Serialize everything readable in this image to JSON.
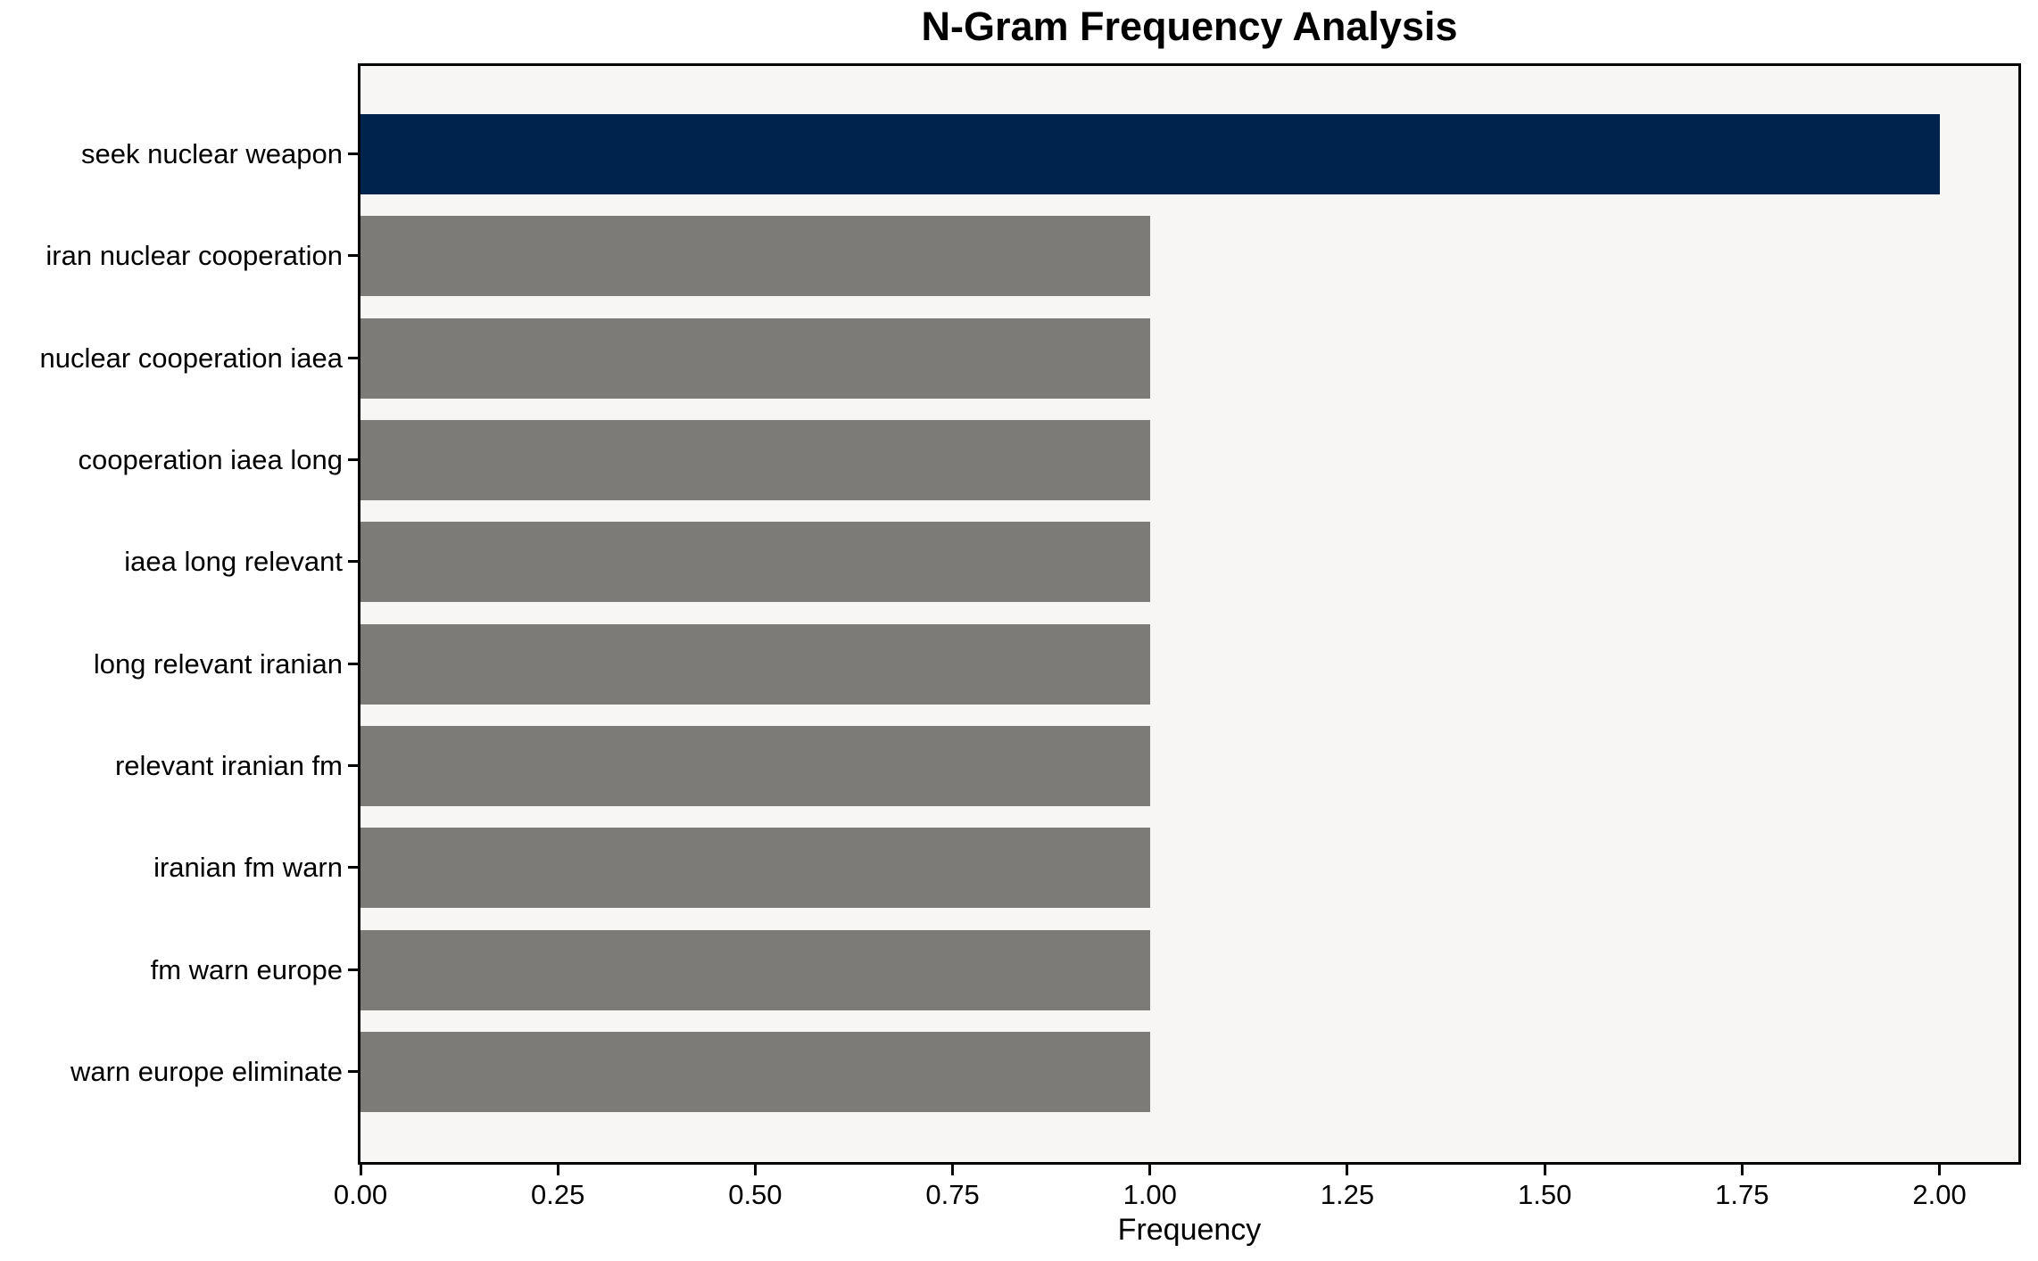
{
  "chart_data": {
    "type": "bar",
    "orientation": "horizontal",
    "title": "N-Gram Frequency Analysis",
    "xlabel": "Frequency",
    "ylabel": "",
    "categories": [
      "seek nuclear weapon",
      "iran nuclear cooperation",
      "nuclear cooperation iaea",
      "cooperation iaea long",
      "iaea long relevant",
      "long relevant iranian",
      "relevant iranian fm",
      "iranian fm warn",
      "fm warn europe",
      "warn europe eliminate"
    ],
    "values": [
      2,
      1,
      1,
      1,
      1,
      1,
      1,
      1,
      1,
      1
    ],
    "highlight_index": 0,
    "xlim": [
      0,
      2.1
    ],
    "xtick_values": [
      0,
      0.25,
      0.5,
      0.75,
      1.0,
      1.25,
      1.5,
      1.75,
      2.0
    ],
    "xtick_labels": [
      "0.00",
      "0.25",
      "0.50",
      "0.75",
      "1.00",
      "1.25",
      "1.50",
      "1.75",
      "2.00"
    ],
    "grid": false,
    "legend": false,
    "colors": {
      "highlight_bar": "#00234d",
      "default_bar": "#7c7b77",
      "plot_background": "#f7f6f5",
      "axis": "#000000",
      "text": "#000000"
    }
  }
}
